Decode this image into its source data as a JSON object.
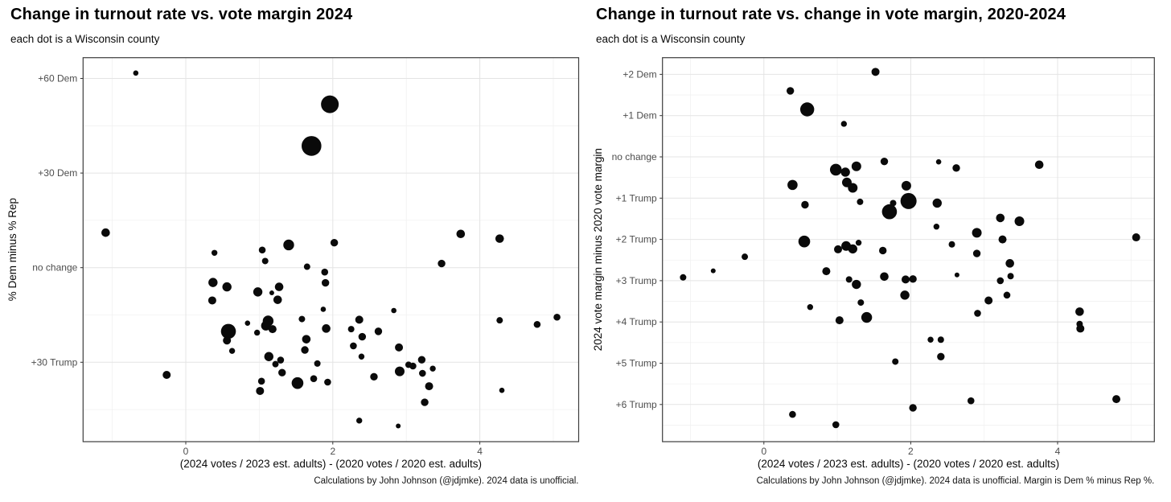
{
  "chart_data": [
    {
      "type": "scatter",
      "title": "Change in turnout rate vs. vote margin 2024",
      "subtitle": "each dot is a Wisconsin county",
      "xlabel": "(2024 votes / 2023 est. adults) - (2020 votes / 2020 est. adults)",
      "ylabel": "% Dem minus % Rep",
      "caption": "Calculations by John Johnson (@jdjmke). 2024 data is unofficial.",
      "legend": "none",
      "grid": "on",
      "xlim": [
        -1.4,
        5.35
      ],
      "ylim": [
        -55,
        66
      ],
      "x_ticks": [
        {
          "v": 0,
          "label": "0"
        },
        {
          "v": 2,
          "label": "2"
        },
        {
          "v": 4,
          "label": "4"
        }
      ],
      "x_minor_gridlines": [
        -1,
        1,
        3,
        5
      ],
      "y_ticks": [
        {
          "v": 60,
          "label": "+60 Dem"
        },
        {
          "v": 30,
          "label": "+30 Dem"
        },
        {
          "v": 0,
          "label": "no change"
        },
        {
          "v": -30,
          "label": "+30 Trump"
        }
      ],
      "y_minor_gridlines": [
        45,
        15,
        -15,
        -45
      ],
      "point_note": "each point = [turnout change pp, 2024 margin pp (Dem positive), dot radius px]",
      "points": [
        [
          -0.68,
          61.7,
          3.3
        ],
        [
          1.96,
          51.8,
          11.0
        ],
        [
          1.71,
          38.6,
          12.3
        ],
        [
          -1.09,
          11.1,
          5.3
        ],
        [
          3.74,
          10.7,
          5.3
        ],
        [
          4.27,
          9.2,
          5.3
        ],
        [
          0.39,
          4.7,
          3.7
        ],
        [
          1.04,
          5.6,
          4.3
        ],
        [
          1.08,
          2.1,
          4.0
        ],
        [
          1.4,
          7.2,
          6.7
        ],
        [
          2.02,
          7.9,
          4.7
        ],
        [
          1.65,
          0.3,
          4.0
        ],
        [
          1.89,
          -1.4,
          4.3
        ],
        [
          1.9,
          -4.8,
          4.7
        ],
        [
          3.48,
          1.3,
          4.7
        ],
        [
          0.37,
          -4.7,
          5.7
        ],
        [
          0.56,
          -6.1,
          5.7
        ],
        [
          0.36,
          -10.4,
          5.0
        ],
        [
          0.98,
          -7.7,
          5.7
        ],
        [
          1.17,
          -8.0,
          3.0
        ],
        [
          1.27,
          -6.1,
          5.3
        ],
        [
          1.25,
          -10.2,
          5.3
        ],
        [
          1.87,
          -13.2,
          3.3
        ],
        [
          2.83,
          -13.6,
          3.3
        ],
        [
          1.58,
          -16.3,
          4.0
        ],
        [
          1.12,
          -16.9,
          6.7
        ],
        [
          2.36,
          -16.5,
          5.0
        ],
        [
          4.27,
          -16.7,
          4.0
        ],
        [
          4.78,
          -18.0,
          4.3
        ],
        [
          5.05,
          -15.7,
          4.3
        ],
        [
          0.58,
          -20.2,
          9.3
        ],
        [
          0.84,
          -17.6,
          3.3
        ],
        [
          1.09,
          -18.4,
          6.0
        ],
        [
          1.18,
          -19.5,
          5.0
        ],
        [
          1.91,
          -19.3,
          5.3
        ],
        [
          2.25,
          -19.5,
          4.0
        ],
        [
          2.62,
          -20.2,
          4.7
        ],
        [
          -0.26,
          -34.0,
          5.0
        ],
        [
          0.56,
          -23.1,
          5.0
        ],
        [
          0.63,
          -26.4,
          3.7
        ],
        [
          0.97,
          -20.6,
          3.7
        ],
        [
          1.13,
          -28.2,
          5.7
        ],
        [
          1.22,
          -30.6,
          4.0
        ],
        [
          1.29,
          -29.3,
          4.3
        ],
        [
          1.31,
          -33.3,
          4.7
        ],
        [
          1.03,
          -36.0,
          4.3
        ],
        [
          1.01,
          -39.1,
          5.0
        ],
        [
          1.52,
          -36.6,
          7.3
        ],
        [
          1.64,
          -22.7,
          5.3
        ],
        [
          1.62,
          -26.1,
          4.7
        ],
        [
          1.74,
          -35.2,
          4.3
        ],
        [
          1.93,
          -36.3,
          4.3
        ],
        [
          1.79,
          -30.4,
          4.0
        ],
        [
          2.28,
          -24.8,
          4.3
        ],
        [
          2.4,
          -21.9,
          4.7
        ],
        [
          2.39,
          -28.2,
          3.7
        ],
        [
          2.56,
          -34.6,
          4.7
        ],
        [
          2.9,
          -25.3,
          5.0
        ],
        [
          2.91,
          -32.9,
          6.0
        ],
        [
          3.03,
          -30.8,
          4.0
        ],
        [
          3.09,
          -31.2,
          4.3
        ],
        [
          3.21,
          -29.2,
          4.7
        ],
        [
          3.22,
          -33.5,
          4.3
        ],
        [
          3.36,
          -32.0,
          3.7
        ],
        [
          3.31,
          -37.6,
          5.0
        ],
        [
          3.25,
          -42.7,
          4.7
        ],
        [
          4.3,
          -38.9,
          3.3
        ],
        [
          2.36,
          -48.5,
          3.7
        ],
        [
          2.89,
          -50.2,
          3.0
        ]
      ]
    },
    {
      "type": "scatter",
      "title": "Change in turnout rate vs. change in vote margin, 2020-2024",
      "subtitle": "each dot is a Wisconsin county",
      "xlabel": "(2024 votes / 2023 est. adults) - (2020 votes / 2020 est. adults)",
      "ylabel": "2024 vote margin minus 2020 vote margin",
      "caption": "Calculations by John Johnson (@jdjmke). 2024 data is unofficial. Margin is Dem % minus Rep %.",
      "legend": "none",
      "grid": "on",
      "xlim": [
        -1.38,
        5.32
      ],
      "ylim": [
        -6.9,
        2.4
      ],
      "x_ticks": [
        {
          "v": 0,
          "label": "0"
        },
        {
          "v": 2,
          "label": "2"
        },
        {
          "v": 4,
          "label": "4"
        }
      ],
      "x_minor_gridlines": [
        -1,
        1,
        3,
        5
      ],
      "y_ticks": [
        {
          "v": 2,
          "label": "+2 Dem"
        },
        {
          "v": 1,
          "label": "+1 Dem"
        },
        {
          "v": 0,
          "label": "no change"
        },
        {
          "v": -1,
          "label": "+1 Trump"
        },
        {
          "v": -2,
          "label": "+2 Trump"
        },
        {
          "v": -3,
          "label": "+3 Trump"
        },
        {
          "v": -4,
          "label": "+4 Trump"
        },
        {
          "v": -5,
          "label": "+5 Trump"
        },
        {
          "v": -6,
          "label": "+6 Trump"
        }
      ],
      "y_minor_gridlines": [
        1.5,
        0.5,
        -0.5,
        -1.5,
        -2.5,
        -3.5,
        -4.5,
        -5.5,
        -6.5
      ],
      "point_note": "each point = [turnout change pp, margin shift pp (Dem positive), dot radius px]",
      "points": [
        [
          1.52,
          2.06,
          5.0
        ],
        [
          0.36,
          1.6,
          4.7
        ],
        [
          0.59,
          1.15,
          8.7
        ],
        [
          1.09,
          0.8,
          3.7
        ],
        [
          0.98,
          -0.31,
          7.3
        ],
        [
          1.11,
          -0.37,
          5.7
        ],
        [
          1.26,
          -0.23,
          6.0
        ],
        [
          1.64,
          -0.11,
          4.7
        ],
        [
          0.39,
          -0.68,
          6.3
        ],
        [
          1.13,
          -0.62,
          6.0
        ],
        [
          1.21,
          -0.75,
          6.0
        ],
        [
          1.94,
          -0.7,
          6.0
        ],
        [
          2.38,
          -0.12,
          3.3
        ],
        [
          2.62,
          -0.27,
          4.7
        ],
        [
          3.75,
          -0.19,
          5.3
        ],
        [
          0.56,
          -1.16,
          4.7
        ],
        [
          1.31,
          -1.09,
          4.0
        ],
        [
          1.71,
          -1.33,
          9.3
        ],
        [
          1.76,
          -1.12,
          4.0
        ],
        [
          1.97,
          -1.07,
          10.0
        ],
        [
          0.55,
          -2.05,
          7.3
        ],
        [
          1.01,
          -2.24,
          5.0
        ],
        [
          1.12,
          -2.16,
          6.0
        ],
        [
          1.21,
          -2.23,
          5.7
        ],
        [
          1.29,
          -2.08,
          3.7
        ],
        [
          1.62,
          -2.27,
          4.7
        ],
        [
          -0.26,
          -2.42,
          4.0
        ],
        [
          -0.69,
          -2.76,
          3.0
        ],
        [
          -1.1,
          -2.92,
          4.0
        ],
        [
          0.85,
          -2.77,
          5.0
        ],
        [
          1.16,
          -2.97,
          4.0
        ],
        [
          1.26,
          -3.09,
          5.7
        ],
        [
          1.64,
          -2.9,
          5.3
        ],
        [
          1.93,
          -2.97,
          5.0
        ],
        [
          2.03,
          -2.96,
          4.7
        ],
        [
          1.92,
          -3.35,
          5.7
        ],
        [
          1.32,
          -3.53,
          4.0
        ],
        [
          0.63,
          -3.64,
          3.7
        ],
        [
          2.36,
          -1.12,
          5.7
        ],
        [
          2.35,
          -1.69,
          3.7
        ],
        [
          2.56,
          -2.12,
          4.0
        ],
        [
          2.9,
          -1.84,
          6.0
        ],
        [
          2.9,
          -2.34,
          4.7
        ],
        [
          3.22,
          -1.48,
          5.3
        ],
        [
          3.48,
          -1.56,
          6.0
        ],
        [
          3.25,
          -2.0,
          5.0
        ],
        [
          5.07,
          -1.95,
          5.0
        ],
        [
          2.63,
          -2.86,
          3.0
        ],
        [
          3.35,
          -2.58,
          5.3
        ],
        [
          3.36,
          -2.89,
          4.0
        ],
        [
          3.22,
          -3.0,
          4.3
        ],
        [
          3.31,
          -3.35,
          4.3
        ],
        [
          3.06,
          -3.48,
          5.0
        ],
        [
          2.91,
          -3.79,
          4.3
        ],
        [
          4.3,
          -3.75,
          5.3
        ],
        [
          1.03,
          -3.96,
          5.0
        ],
        [
          1.4,
          -3.89,
          6.7
        ],
        [
          1.79,
          -4.96,
          4.0
        ],
        [
          2.03,
          -6.08,
          4.7
        ],
        [
          0.39,
          -6.24,
          4.3
        ],
        [
          0.98,
          -6.49,
          4.3
        ],
        [
          4.3,
          -4.05,
          4.0
        ],
        [
          4.31,
          -4.16,
          5.0
        ],
        [
          2.27,
          -4.43,
          3.7
        ],
        [
          2.41,
          -4.43,
          4.0
        ],
        [
          2.41,
          -4.84,
          4.7
        ],
        [
          2.82,
          -5.91,
          4.3
        ],
        [
          4.8,
          -5.87,
          5.0
        ]
      ]
    }
  ],
  "colors": {
    "dot": "#0a0a0a",
    "panel_border": "#3d3d3d",
    "grid_major": "#e4e4e4",
    "grid_minor": "#f1f1f1",
    "tick_mark": "#333333",
    "tick_label": "#4d4d4d",
    "background": "#ffffff"
  }
}
